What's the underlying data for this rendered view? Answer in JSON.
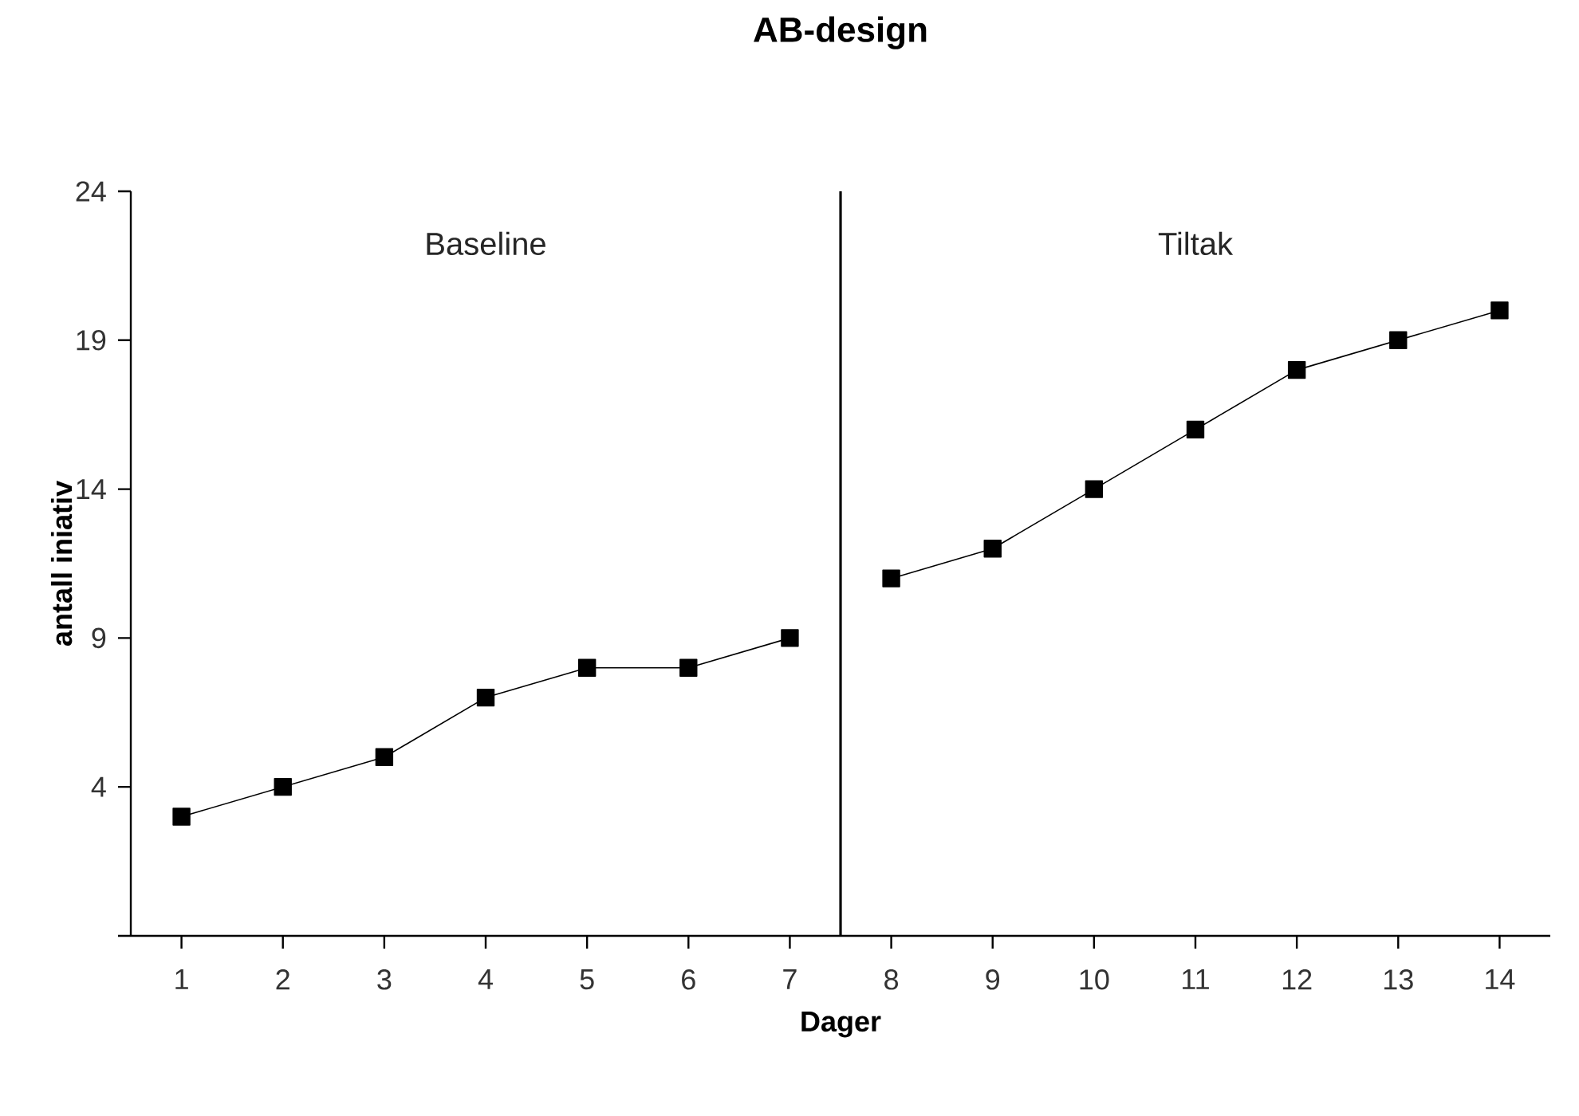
{
  "chart_data": {
    "type": "line",
    "title": "AB-design",
    "xlabel": "Dager",
    "ylabel": "antall iniativ",
    "x": [
      1,
      2,
      3,
      4,
      5,
      6,
      7,
      8,
      9,
      10,
      11,
      12,
      13,
      14
    ],
    "xlim": [
      0.5,
      14.5
    ],
    "xticks": [
      1,
      2,
      3,
      4,
      5,
      6,
      7,
      8,
      9,
      10,
      11,
      12,
      13,
      14
    ],
    "ylim": [
      -1,
      24
    ],
    "yticks": [
      {
        "value": -1,
        "label": null
      },
      4,
      9,
      14,
      19,
      24
    ],
    "series": [
      {
        "color": "#000000",
        "values": [
          3,
          4,
          5,
          7,
          8,
          8,
          9,
          null,
          null,
          null,
          null,
          null,
          null,
          null
        ]
      },
      {
        "color": "#000000",
        "values": [
          null,
          null,
          null,
          null,
          null,
          null,
          null,
          11,
          12,
          14,
          16,
          18,
          19,
          20
        ]
      }
    ],
    "ref_lines": [
      {
        "axis": "x",
        "value": 7.5,
        "color": "#000000"
      }
    ],
    "annotations": [
      "Baseline",
      "Tiltak"
    ],
    "marker": "square",
    "line_style": "solid",
    "grid": false
  }
}
